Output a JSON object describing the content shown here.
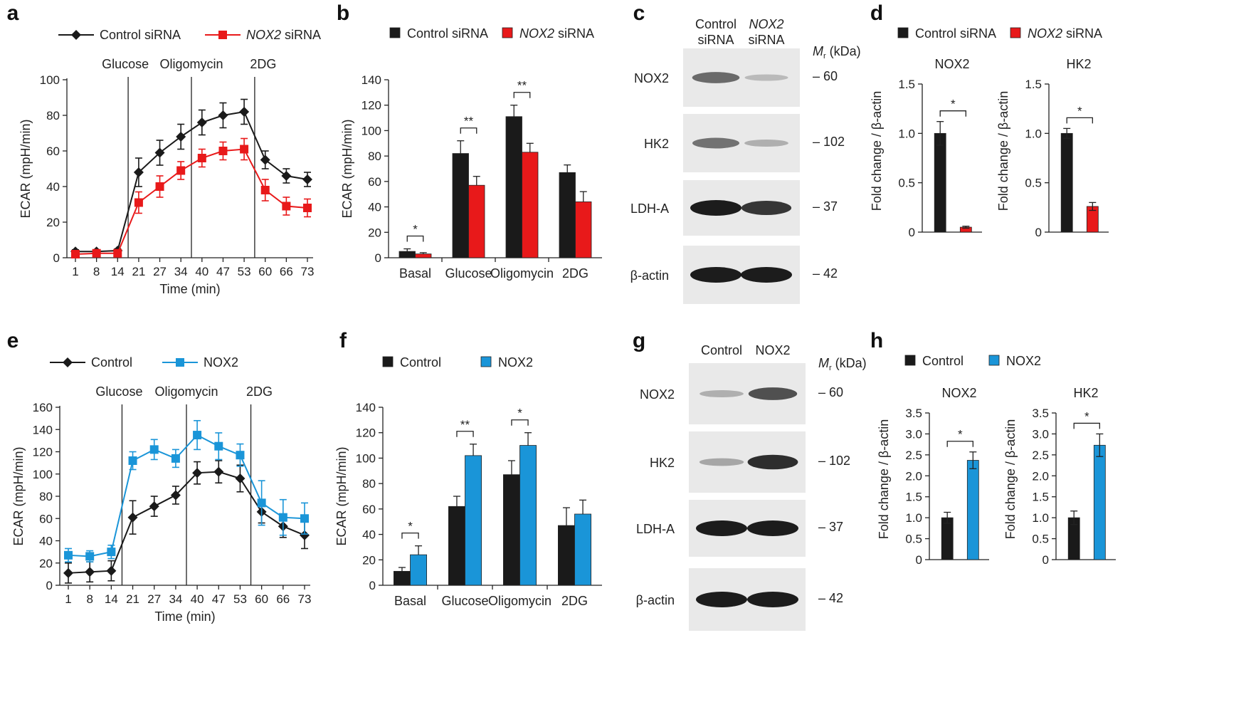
{
  "colors": {
    "black": "#1a1a1a",
    "red": "#e8191a",
    "blue": "#1a95d8",
    "blot_bg": "#e9e9e9"
  },
  "chart_data": [
    {
      "panel": "a",
      "type": "line",
      "title": "",
      "legend": [
        "Control siRNA",
        "NOX2 siRNA"
      ],
      "x": [
        1,
        8,
        14,
        21,
        27,
        34,
        40,
        47,
        53,
        60,
        66,
        73
      ],
      "xticks": [
        "1",
        "8",
        "14",
        "21",
        "27",
        "34",
        "40",
        "47",
        "53",
        "60",
        "66",
        "73"
      ],
      "xlabel": "Time (min)",
      "ylabel": "ECAR (mpH/min)",
      "ylim": [
        0,
        100
      ],
      "yticks": [
        0,
        20,
        40,
        60,
        80,
        100
      ],
      "injections": [
        "Glucose",
        "Oligomycin",
        "2DG"
      ],
      "series": [
        {
          "name": "Control siRNA",
          "values": [
            3.5,
            3.5,
            4,
            48,
            59,
            68,
            76,
            80,
            82,
            55,
            46,
            44
          ],
          "errors": [
            1,
            1,
            1,
            8,
            7,
            7,
            7,
            7,
            7,
            5,
            4,
            4
          ]
        },
        {
          "name": "NOX2 siRNA",
          "values": [
            2,
            2.5,
            2.5,
            31,
            40,
            49,
            56,
            60,
            61,
            38,
            29,
            28
          ],
          "errors": [
            1,
            1,
            1,
            6,
            6,
            5,
            5,
            5,
            6,
            6,
            5,
            5
          ]
        }
      ]
    },
    {
      "panel": "b",
      "type": "bar",
      "legend": [
        "Control siRNA",
        "NOX2 siRNA"
      ],
      "categories": [
        "Basal",
        "Glucose",
        "Oligomycin",
        "2DG"
      ],
      "ylabel": "ECAR (mpH/min)",
      "ylim": [
        0,
        140
      ],
      "yticks": [
        0,
        20,
        40,
        60,
        80,
        100,
        120,
        140
      ],
      "series": [
        {
          "name": "Control siRNA",
          "values": [
            5,
            82,
            111,
            67
          ],
          "errors": [
            2,
            10,
            9,
            6
          ]
        },
        {
          "name": "NOX2 siRNA",
          "values": [
            3,
            57,
            83,
            44
          ],
          "errors": [
            1,
            7,
            7,
            8
          ]
        }
      ],
      "significance": [
        "*",
        "**",
        "**",
        ""
      ]
    },
    {
      "panel": "c",
      "type": "blot",
      "lanes": [
        "Control siRNA",
        "NOX2 siRNA"
      ],
      "mr_label": "Mr (kDa)",
      "rows": [
        {
          "protein": "NOX2",
          "mw": "60",
          "intensity": [
            0.55,
            0.08
          ]
        },
        {
          "protein": "HK2",
          "mw": "102",
          "intensity": [
            0.5,
            0.15
          ]
        },
        {
          "protein": "LDH-A",
          "mw": "37",
          "intensity": [
            1.0,
            0.85
          ]
        },
        {
          "protein": "β-actin",
          "mw": "42",
          "intensity": [
            1.0,
            1.0
          ]
        }
      ]
    },
    {
      "panel": "d",
      "type": "bar",
      "legend": [
        "Control siRNA",
        "NOX2 siRNA"
      ],
      "subplots": [
        {
          "title": "NOX2",
          "ylabel": "Fold change / β-actin",
          "ylim": [
            0,
            1.5
          ],
          "yticks": [
            "0",
            "0.5",
            "1.0",
            "1.5"
          ],
          "values": [
            1.0,
            0.05
          ],
          "errors": [
            0.12,
            0.01
          ],
          "significance": "*"
        },
        {
          "title": "HK2",
          "ylabel": "Fold change / β-actin",
          "ylim": [
            0,
            1.5
          ],
          "yticks": [
            "0",
            "0.5",
            "1.0",
            "1.5"
          ],
          "values": [
            1.0,
            0.26
          ],
          "errors": [
            0.05,
            0.04
          ],
          "significance": "*"
        }
      ]
    },
    {
      "panel": "e",
      "type": "line",
      "legend": [
        "Control",
        "NOX2"
      ],
      "x": [
        1,
        8,
        14,
        21,
        27,
        34,
        40,
        47,
        53,
        60,
        66,
        73
      ],
      "xticks": [
        "1",
        "8",
        "14",
        "21",
        "27",
        "34",
        "40",
        "47",
        "53",
        "60",
        "66",
        "73"
      ],
      "xlabel": "Time (min)",
      "ylabel": "ECAR (mpH/min)",
      "ylim": [
        0,
        160
      ],
      "yticks": [
        0,
        20,
        40,
        60,
        80,
        100,
        120,
        140,
        160
      ],
      "injections": [
        "Glucose",
        "Oligomycin",
        "2DG"
      ],
      "series": [
        {
          "name": "Control",
          "values": [
            11,
            12,
            13,
            61,
            71,
            81,
            101,
            102,
            96,
            66,
            53,
            45
          ],
          "errors": [
            9,
            9,
            9,
            15,
            9,
            8,
            10,
            10,
            12,
            10,
            10,
            12
          ]
        },
        {
          "name": "NOX2",
          "values": [
            27,
            26,
            30,
            112,
            122,
            114,
            135,
            125,
            117,
            74,
            61,
            60
          ],
          "errors": [
            6,
            5,
            6,
            8,
            9,
            8,
            13,
            12,
            10,
            20,
            16,
            14
          ]
        }
      ]
    },
    {
      "panel": "f",
      "type": "bar",
      "legend": [
        "Control",
        "NOX2"
      ],
      "categories": [
        "Basal",
        "Glucose",
        "Oligomycin",
        "2DG"
      ],
      "ylabel": "ECAR (mpH/min)",
      "ylim": [
        0,
        140
      ],
      "yticks": [
        0,
        20,
        40,
        60,
        80,
        100,
        120,
        140
      ],
      "series": [
        {
          "name": "Control",
          "values": [
            11,
            62,
            87,
            47
          ],
          "errors": [
            3,
            8,
            11,
            14
          ]
        },
        {
          "name": "NOX2",
          "values": [
            24,
            102,
            110,
            56
          ],
          "errors": [
            7,
            9,
            10,
            11
          ]
        }
      ],
      "significance": [
        "*",
        "**",
        "*",
        ""
      ]
    },
    {
      "panel": "g",
      "type": "blot",
      "lanes": [
        "Control",
        "NOX2"
      ],
      "mr_label": "Mr (kDa)",
      "rows": [
        {
          "protein": "NOX2",
          "mw": "60",
          "intensity": [
            0.15,
            0.7
          ]
        },
        {
          "protein": "HK2",
          "mw": "102",
          "intensity": [
            0.2,
            0.9
          ]
        },
        {
          "protein": "LDH-A",
          "mw": "37",
          "intensity": [
            1.0,
            1.0
          ]
        },
        {
          "protein": "β-actin",
          "mw": "42",
          "intensity": [
            1.0,
            1.0
          ]
        }
      ]
    },
    {
      "panel": "h",
      "type": "bar",
      "legend": [
        "Control",
        "NOX2"
      ],
      "subplots": [
        {
          "title": "NOX2",
          "ylabel": "Fold change / β-actin",
          "ylim": [
            0,
            3.5
          ],
          "yticks": [
            "0",
            "0.5",
            "1.0",
            "1.5",
            "2.0",
            "2.5",
            "3.0",
            "3.5"
          ],
          "values": [
            1.0,
            2.37
          ],
          "errors": [
            0.13,
            0.2
          ],
          "significance": "*"
        },
        {
          "title": "HK2",
          "ylabel": "Fold change / β-actin",
          "ylim": [
            0,
            3.5
          ],
          "yticks": [
            "0",
            "0.5",
            "1.0",
            "1.5",
            "2.0",
            "2.5",
            "3.0",
            "3.5"
          ],
          "values": [
            1.0,
            2.73
          ],
          "errors": [
            0.16,
            0.27
          ],
          "significance": "*"
        }
      ]
    }
  ]
}
